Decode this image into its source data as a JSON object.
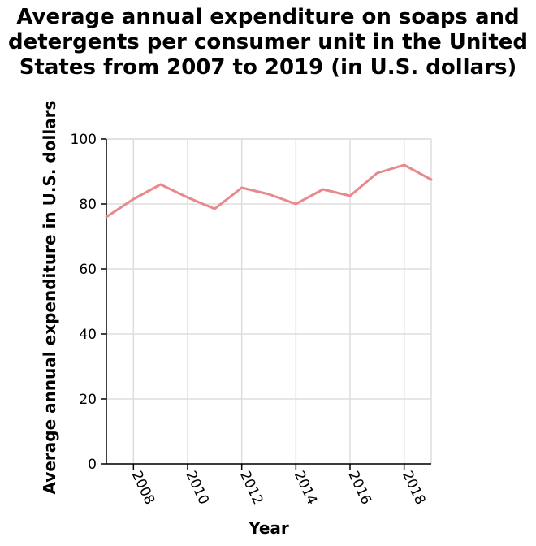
{
  "chart_data": {
    "type": "line",
    "title_lines": [
      "Average annual expenditure on soaps and",
      "detergents per consumer unit in the United",
      "States from 2007 to 2019 (in U.S. dollars)"
    ],
    "xlabel": "Year",
    "ylabel": "Average annual expenditure in U.S. dollars",
    "x": [
      2007,
      2008,
      2009,
      2010,
      2011,
      2012,
      2013,
      2014,
      2015,
      2016,
      2017,
      2018,
      2019
    ],
    "series": [
      {
        "values": [
          76,
          81.5,
          86,
          82,
          78.5,
          85,
          83,
          80,
          84.5,
          82.5,
          89.5,
          92,
          87.5
        ],
        "color": "#e8898e"
      }
    ],
    "xlim": [
      2007,
      2019
    ],
    "ylim": [
      0,
      100
    ],
    "xticks": [
      2008,
      2010,
      2012,
      2014,
      2016,
      2018
    ],
    "yticks": [
      0,
      20,
      40,
      60,
      80,
      100
    ],
    "grid": true,
    "grid_color": "#dddddd",
    "axis_color": "#000000"
  }
}
